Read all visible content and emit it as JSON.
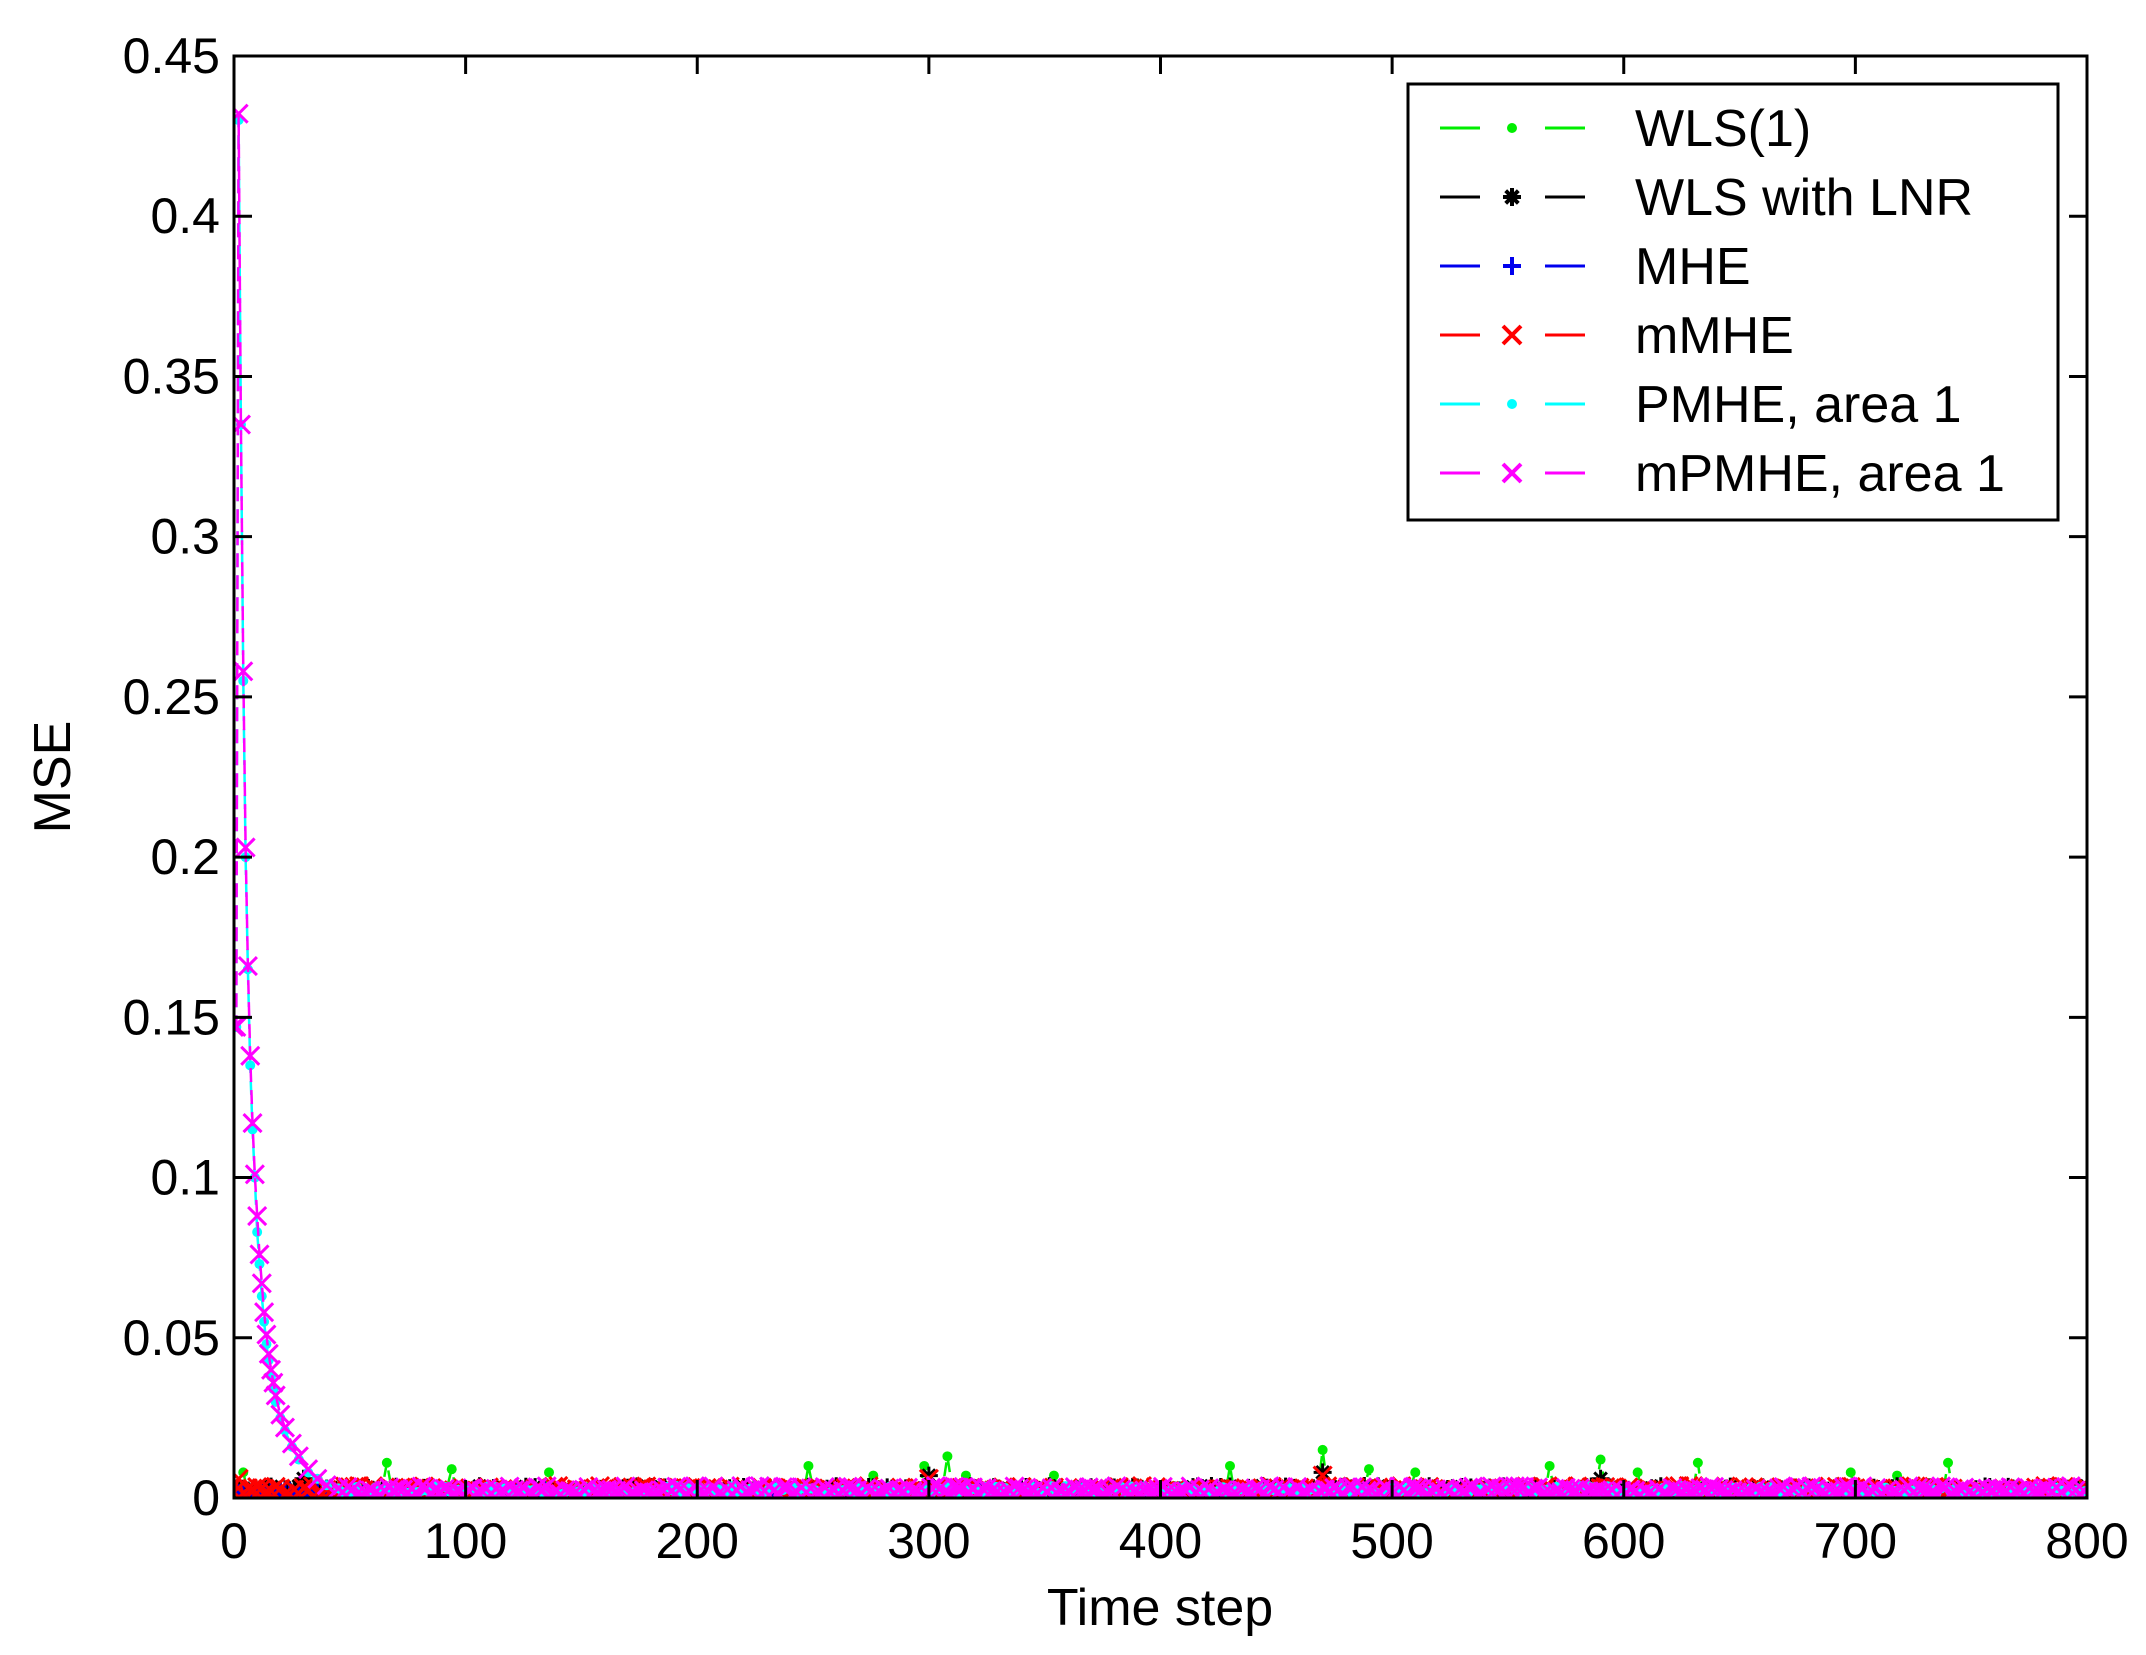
{
  "chart_data": {
    "type": "line",
    "title": "",
    "xlabel": "Time step",
    "ylabel": "MSE",
    "xlim": [
      0,
      800
    ],
    "ylim": [
      0,
      0.45
    ],
    "grid": false,
    "legend_position": "top-right",
    "xticks": [
      0,
      100,
      200,
      300,
      400,
      500,
      600,
      700,
      800
    ],
    "xtick_labels": [
      "0",
      "100",
      "200",
      "300",
      "400",
      "500",
      "600",
      "700",
      "800"
    ],
    "yticks": [
      0,
      0.05,
      0.1,
      0.15,
      0.2,
      0.25,
      0.3,
      0.35,
      0.4,
      0.45
    ],
    "ytick_labels": [
      "0",
      "0.05",
      "0.1",
      "0.15",
      "0.2",
      "0.25",
      "0.3",
      "0.35",
      "0.4",
      "0.45"
    ],
    "series": [
      {
        "name": "WLS(1)",
        "color": "#00ee00",
        "marker": "dot",
        "baseline": 0.003,
        "peaks": [
          [
            4,
            0.008
          ],
          [
            65,
            0.011
          ],
          [
            93,
            0.009
          ],
          [
            135,
            0.008
          ],
          [
            248,
            0.01
          ],
          [
            276,
            0.007
          ],
          [
            297,
            0.01
          ],
          [
            307,
            0.013
          ],
          [
            316,
            0.007
          ],
          [
            354,
            0.007
          ],
          [
            430,
            0.01
          ],
          [
            470,
            0.015
          ],
          [
            490,
            0.009
          ],
          [
            510,
            0.008
          ],
          [
            568,
            0.01
          ],
          [
            590,
            0.012
          ],
          [
            605,
            0.008
          ],
          [
            631,
            0.011
          ],
          [
            697,
            0.008
          ],
          [
            718,
            0.007
          ],
          [
            740,
            0.011
          ]
        ]
      },
      {
        "name": "WLS with LNR",
        "color": "#000000",
        "marker": "asterisk",
        "baseline": 0.003,
        "peaks": [
          [
            30,
            0.006
          ],
          [
            300,
            0.007
          ],
          [
            470,
            0.008
          ],
          [
            590,
            0.006
          ]
        ]
      },
      {
        "name": "MHE",
        "color": "#0000ee",
        "marker": "plus",
        "baseline": 0.002,
        "peaks": []
      },
      {
        "name": "mMHE",
        "color": "#ff0000",
        "marker": "x",
        "baseline": 0.003,
        "peaks": [
          [
            2,
            0.006
          ],
          [
            300,
            0.006
          ],
          [
            470,
            0.007
          ]
        ]
      },
      {
        "name": "PMHE, area 1",
        "color": "#00ffff",
        "marker": "dot",
        "baseline": 0.003,
        "peaks": [],
        "initial": [
          [
            0,
            0.147
          ],
          [
            1,
            0.147
          ],
          [
            2,
            0.43
          ],
          [
            3,
            0.335
          ],
          [
            4,
            0.255
          ],
          [
            5,
            0.2
          ],
          [
            6,
            0.165
          ],
          [
            7,
            0.135
          ],
          [
            8,
            0.115
          ],
          [
            9,
            0.1
          ],
          [
            10,
            0.083
          ],
          [
            11,
            0.073
          ],
          [
            12,
            0.063
          ],
          [
            13,
            0.055
          ],
          [
            14,
            0.048
          ],
          [
            15,
            0.043
          ],
          [
            16,
            0.038
          ],
          [
            17,
            0.034
          ],
          [
            18,
            0.03
          ],
          [
            20,
            0.025
          ],
          [
            22,
            0.021
          ],
          [
            25,
            0.016
          ],
          [
            28,
            0.012
          ],
          [
            32,
            0.008
          ],
          [
            36,
            0.006
          ],
          [
            40,
            0.004
          ],
          [
            45,
            0.003
          ]
        ]
      },
      {
        "name": "mPMHE, area 1",
        "color": "#ff00ff",
        "marker": "x",
        "baseline": 0.003,
        "peaks": [],
        "initial": [
          [
            0,
            0.147
          ],
          [
            1,
            0.147
          ],
          [
            2,
            0.432
          ],
          [
            3,
            0.335
          ],
          [
            4,
            0.258
          ],
          [
            5,
            0.203
          ],
          [
            6,
            0.166
          ],
          [
            7,
            0.138
          ],
          [
            8,
            0.117
          ],
          [
            9,
            0.101
          ],
          [
            10,
            0.088
          ],
          [
            11,
            0.076
          ],
          [
            12,
            0.067
          ],
          [
            13,
            0.058
          ],
          [
            14,
            0.051
          ],
          [
            15,
            0.045
          ],
          [
            16,
            0.04
          ],
          [
            17,
            0.036
          ],
          [
            18,
            0.032
          ],
          [
            20,
            0.026
          ],
          [
            22,
            0.022
          ],
          [
            25,
            0.017
          ],
          [
            28,
            0.013
          ],
          [
            32,
            0.009
          ],
          [
            36,
            0.006
          ],
          [
            40,
            0.004
          ],
          [
            45,
            0.003
          ]
        ]
      }
    ]
  }
}
